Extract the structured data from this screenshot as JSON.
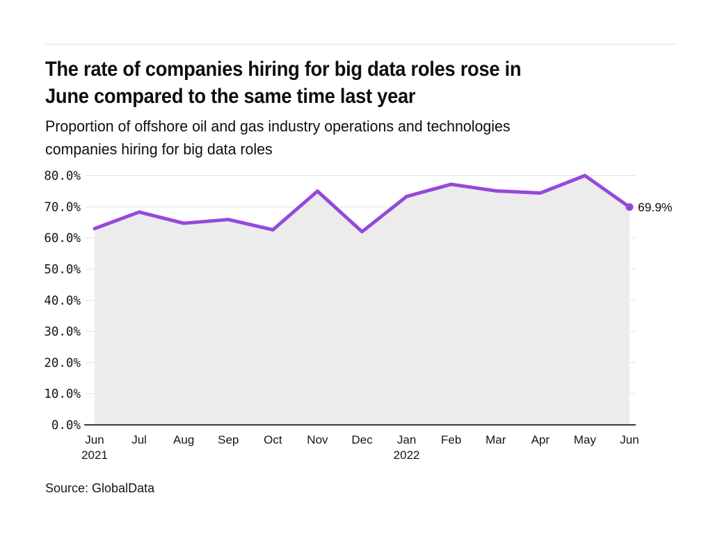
{
  "header": {
    "title_line1": "The rate of companies hiring for big data roles rose in",
    "title_line2": "June compared to the same time last year",
    "subtitle_line1": "Proportion of offshore oil and gas industry operations and technologies",
    "subtitle_line2": "companies hiring for big data roles"
  },
  "footer": {
    "source": "Source: GlobalData"
  },
  "chart_data": {
    "type": "line",
    "title": "The rate of companies hiring for big data roles rose in June compared to the same time last year",
    "subtitle": "Proportion of offshore oil and gas industry operations and technologies companies hiring for big data roles",
    "source": "Source: GlobalData",
    "categories": [
      "Jun",
      "Jul",
      "Aug",
      "Sep",
      "Oct",
      "Nov",
      "Dec",
      "Jan",
      "Feb",
      "Mar",
      "Apr",
      "May",
      "Jun"
    ],
    "category_sublabels": [
      "2021",
      "",
      "",
      "",
      "",
      "",
      "",
      "2022",
      "",
      "",
      "",
      "",
      ""
    ],
    "values": [
      63.0,
      68.3,
      64.7,
      65.9,
      62.6,
      75.0,
      62.0,
      73.3,
      77.2,
      75.1,
      74.4,
      80.0,
      69.9
    ],
    "end_label": "69.9%",
    "ylim": [
      0,
      80
    ],
    "ytick_step": 10,
    "ytick_decimals": 1,
    "ytick_suffix": "%",
    "grid": true,
    "legend": false,
    "colors": {
      "line": "#9648dd",
      "area": "#ececec",
      "grid": "#e3e3e3",
      "axis": "#3a3a3a",
      "text": "#161616"
    }
  }
}
